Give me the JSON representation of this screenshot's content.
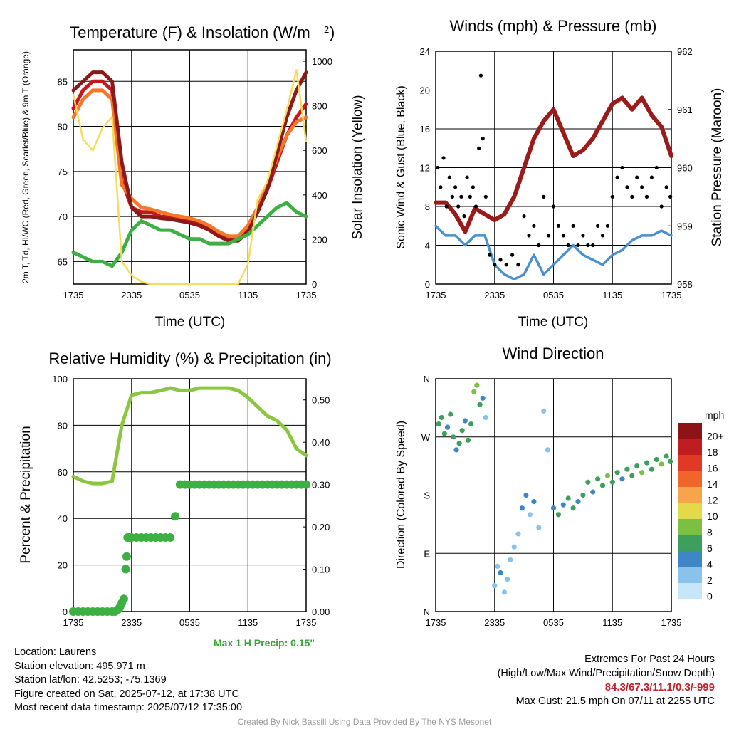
{
  "chart_data": [
    {
      "id": "temp",
      "type": "line",
      "title": "Temperature (F) & Insolation (W/m²)",
      "xlabel": "Time (UTC)",
      "ylabel": "2m T, Td, HI/WC (Red, Green, Scarlet/Blue) & 9m T (Orange)",
      "ylabel_right": "Solar Insolation (Yellow)",
      "x_ticks": [
        "1735",
        "2335",
        "0535",
        "1135",
        "1735"
      ],
      "y_ticks": [
        65,
        70,
        75,
        80,
        85
      ],
      "y_ticks_right": [
        0,
        200,
        400,
        600,
        800,
        1000
      ],
      "ylim": [
        62.5,
        88.5
      ],
      "ylim_right": [
        0,
        1000
      ],
      "x_hours": [
        0,
        1,
        2,
        3,
        4,
        5,
        6,
        7,
        8,
        9,
        10,
        11,
        12,
        13,
        14,
        15,
        16,
        17,
        18,
        19,
        20,
        21,
        22,
        23,
        24
      ],
      "series": [
        {
          "role": "2m T",
          "color": "#c8161d",
          "axis": "left",
          "values": [
            82,
            84,
            85,
            85,
            84,
            74,
            71,
            70.5,
            70.5,
            70,
            70,
            69.8,
            69.5,
            69.3,
            68.8,
            68,
            67.5,
            67.5,
            68.5,
            70.5,
            73,
            76,
            79,
            81,
            82.5
          ]
        },
        {
          "role": "9m T",
          "color": "#f4772a",
          "axis": "left",
          "values": [
            81,
            83,
            84,
            84,
            83,
            73.5,
            72,
            71,
            70.8,
            70.5,
            70.2,
            70,
            69.8,
            69.5,
            69,
            68.3,
            67.8,
            67.8,
            69,
            71,
            73.5,
            76.5,
            79,
            80.5,
            81
          ]
        },
        {
          "role": "HI/WC",
          "color": "#8b1a1a",
          "axis": "left",
          "values": [
            84,
            85,
            86,
            86,
            85,
            76,
            71,
            70,
            70,
            69.8,
            69.7,
            69.5,
            69.3,
            69,
            68.5,
            67.8,
            67.3,
            67.3,
            68.3,
            70.5,
            73,
            77,
            81,
            84,
            86
          ]
        },
        {
          "role": "2m Td",
          "color": "#3cb043",
          "axis": "left",
          "values": [
            66,
            65.5,
            65,
            65,
            64.5,
            66,
            68.5,
            69.5,
            69,
            68.5,
            68.5,
            68,
            67.5,
            67.5,
            67,
            67,
            67,
            67.5,
            68,
            69,
            70,
            71,
            71.5,
            70.5,
            70
          ]
        },
        {
          "role": "Solar",
          "color": "#f7dc5a",
          "axis": "right",
          "values": [
            850,
            650,
            600,
            700,
            750,
            100,
            40,
            10,
            0,
            0,
            0,
            0,
            0,
            0,
            0,
            0,
            0,
            0,
            90,
            380,
            460,
            620,
            780,
            960,
            640
          ]
        }
      ]
    },
    {
      "id": "winds",
      "type": "line",
      "title": "Winds (mph) & Pressure (mb)",
      "xlabel": "Time (UTC)",
      "ylabel": "Sonic Wind & Gust (Blue, Black)",
      "ylabel_right": "Station Pressure (Maroon)",
      "x_ticks": [
        "1735",
        "2335",
        "0535",
        "1135",
        "1735"
      ],
      "y_ticks": [
        0,
        4,
        8,
        12,
        16,
        20,
        24
      ],
      "y_ticks_right": [
        958,
        959,
        960,
        961,
        962
      ],
      "ylim": [
        0,
        24
      ],
      "ylim_right": [
        958,
        962
      ],
      "x_hours": [
        0,
        1,
        2,
        3,
        4,
        5,
        6,
        7,
        8,
        9,
        10,
        11,
        12,
        13,
        14,
        15,
        16,
        17,
        18,
        19,
        20,
        21,
        22,
        23,
        24
      ],
      "series": [
        {
          "role": "Sonic Wind",
          "color": "#4a90d0",
          "axis": "left",
          "values": [
            6,
            5,
            5,
            4,
            5,
            5,
            2,
            1,
            0.5,
            1,
            3,
            1,
            2,
            3,
            4,
            3,
            2.5,
            2,
            3,
            3.5,
            4.5,
            5,
            5,
            5.5,
            5
          ]
        },
        {
          "role": "Pressure",
          "color": "#9b1b1b",
          "axis": "right",
          "values": [
            959.4,
            959.4,
            959.2,
            958.9,
            959.3,
            959.2,
            959.1,
            959.2,
            959.5,
            960.0,
            960.5,
            960.8,
            961.0,
            960.6,
            960.2,
            960.3,
            960.5,
            960.8,
            961.1,
            961.2,
            961.0,
            961.2,
            960.9,
            960.7,
            960.2
          ]
        }
      ],
      "gusts": {
        "color": "#000000",
        "x": [
          0.2,
          0.5,
          0.8,
          1.1,
          1.4,
          1.7,
          2.0,
          2.3,
          2.6,
          2.9,
          3.2,
          3.5,
          3.8,
          4.1,
          4.4,
          4.6,
          4.8,
          5.1,
          5.5,
          6.0,
          6.6,
          7.2,
          7.8,
          8.4,
          9.0,
          9.5,
          10.0,
          10.5,
          11.0,
          11.5,
          12.0,
          12.5,
          13.0,
          13.5,
          14.0,
          14.5,
          15.0,
          15.5,
          16.0,
          16.5,
          17.0,
          17.5,
          18.0,
          18.5,
          19.0,
          19.5,
          20.0,
          20.5,
          21.0,
          21.5,
          22.0,
          22.5,
          23.0,
          23.5,
          23.9
        ],
        "y": [
          12,
          10,
          13,
          8,
          11,
          9,
          10,
          8,
          9,
          7,
          11,
          9,
          10,
          8,
          14,
          21.5,
          15,
          9,
          3,
          2,
          2.5,
          2,
          3,
          2,
          7,
          5,
          6,
          4,
          9,
          5,
          8,
          6,
          5,
          4,
          6,
          4,
          5,
          4,
          4,
          6,
          5,
          6,
          9,
          11,
          12,
          10,
          9,
          11,
          10,
          9,
          11,
          12,
          8,
          10,
          9
        ]
      }
    },
    {
      "id": "rh",
      "type": "line",
      "title": "Relative Humidity (%) & Precipitation (in)",
      "xlabel": "",
      "ylabel": "Percent & Precipitation",
      "x_ticks": [
        "1735",
        "2335",
        "0535",
        "1135",
        "1735"
      ],
      "y_ticks": [
        0,
        20,
        40,
        60,
        80,
        100
      ],
      "y_ticks_right": [
        "0.00",
        "0.10",
        "0.20",
        "0.30",
        "0.40",
        "0.50"
      ],
      "ylim": [
        0,
        100
      ],
      "ylim_right": [
        0,
        0.55
      ],
      "x_hours": [
        0,
        1,
        2,
        3,
        4,
        5,
        6,
        7,
        8,
        9,
        10,
        11,
        12,
        13,
        14,
        15,
        16,
        17,
        18,
        19,
        20,
        21,
        22,
        23,
        24
      ],
      "series": [
        {
          "role": "RH",
          "color": "#8cc63f",
          "axis": "left",
          "values": [
            58,
            56,
            55,
            55,
            56,
            80,
            93,
            94,
            94,
            95,
            96,
            95,
            95,
            96,
            96,
            96,
            96,
            95,
            92,
            88,
            84,
            82,
            78,
            70,
            67
          ]
        }
      ],
      "precip": {
        "color": "#3cb043",
        "x": [
          0,
          0.5,
          1,
          1.5,
          2,
          2.5,
          3,
          3.5,
          4,
          4.3,
          4.6,
          4.8,
          5.0,
          5.2,
          5.4,
          5.5,
          5.6,
          5.8,
          6.0,
          6.5,
          7,
          7.5,
          8,
          8.5,
          9,
          9.5,
          10,
          10.5,
          11,
          11.5,
          12,
          12.5,
          13,
          13.5,
          14,
          14.5,
          15,
          15.5,
          16,
          16.5,
          17,
          17.5,
          18,
          18.5,
          19,
          19.5,
          20,
          20.5,
          21,
          21.5,
          22,
          22.5,
          23,
          23.5,
          24
        ],
        "y": [
          0,
          0,
          0,
          0,
          0,
          0,
          0,
          0,
          0,
          0,
          0.005,
          0.01,
          0.02,
          0.03,
          0.1,
          0.13,
          0.175,
          0.175,
          0.175,
          0.175,
          0.175,
          0.175,
          0.175,
          0.175,
          0.175,
          0.175,
          0.175,
          0.225,
          0.3,
          0.3,
          0.3,
          0.3,
          0.3,
          0.3,
          0.3,
          0.3,
          0.3,
          0.3,
          0.3,
          0.3,
          0.3,
          0.3,
          0.3,
          0.3,
          0.3,
          0.3,
          0.3,
          0.3,
          0.3,
          0.3,
          0.3,
          0.3,
          0.3,
          0.3,
          0.3
        ]
      },
      "annotation": "Max 1 H Precip: 0.15\""
    },
    {
      "id": "wdir",
      "type": "scatter",
      "title": "Wind Direction",
      "ylabel": "Direction (Colored By Speed)",
      "x_ticks": [
        "1735",
        "2335",
        "0535",
        "1135",
        "1735"
      ],
      "y_ticks": [
        "N",
        "E",
        "S",
        "W",
        "N"
      ],
      "ylim": [
        0,
        360
      ],
      "colorbar": {
        "title": "mph",
        "labels": [
          "0",
          "2",
          "4",
          "6",
          "8",
          "10",
          "12",
          "14",
          "16",
          "18",
          "20+"
        ],
        "colors": [
          "#c6e6fa",
          "#89c3ec",
          "#3f86c6",
          "#3e9f5a",
          "#7bc043",
          "#e3da4a",
          "#f7a44a",
          "#f0662a",
          "#e03a26",
          "#c01d22",
          "#8e1316"
        ]
      },
      "points": [
        [
          0.3,
          290,
          6
        ],
        [
          0.6,
          300,
          5
        ],
        [
          0.9,
          275,
          6
        ],
        [
          1.2,
          285,
          4
        ],
        [
          1.5,
          305,
          6
        ],
        [
          1.8,
          270,
          5
        ],
        [
          2.1,
          250,
          4
        ],
        [
          2.4,
          260,
          6
        ],
        [
          2.7,
          280,
          5
        ],
        [
          3.0,
          295,
          3
        ],
        [
          3.3,
          265,
          5
        ],
        [
          3.6,
          290,
          6
        ],
        [
          3.9,
          340,
          7
        ],
        [
          4.2,
          350,
          8
        ],
        [
          4.5,
          320,
          5
        ],
        [
          4.8,
          330,
          3
        ],
        [
          5.1,
          300,
          1
        ],
        [
          6.0,
          40,
          2
        ],
        [
          6.3,
          70,
          1
        ],
        [
          6.6,
          60,
          3
        ],
        [
          7.0,
          30,
          2
        ],
        [
          7.3,
          50,
          1
        ],
        [
          7.6,
          80,
          2
        ],
        [
          8.0,
          100,
          1
        ],
        [
          8.4,
          120,
          2
        ],
        [
          8.8,
          160,
          3
        ],
        [
          9.2,
          180,
          4
        ],
        [
          9.6,
          150,
          2
        ],
        [
          10.0,
          170,
          3
        ],
        [
          10.5,
          130,
          2
        ],
        [
          11.0,
          310,
          1
        ],
        [
          11.4,
          250,
          2
        ],
        [
          12.0,
          160,
          4
        ],
        [
          12.5,
          150,
          5
        ],
        [
          13.0,
          165,
          4
        ],
        [
          13.5,
          175,
          6
        ],
        [
          14.0,
          160,
          5
        ],
        [
          14.5,
          170,
          3
        ],
        [
          15.0,
          180,
          5
        ],
        [
          15.5,
          200,
          6
        ],
        [
          16.0,
          185,
          4
        ],
        [
          16.5,
          205,
          5
        ],
        [
          17.0,
          195,
          6
        ],
        [
          17.5,
          210,
          7
        ],
        [
          18.0,
          200,
          5
        ],
        [
          18.5,
          215,
          6
        ],
        [
          19.0,
          205,
          4
        ],
        [
          19.5,
          220,
          6
        ],
        [
          20.0,
          210,
          5
        ],
        [
          20.5,
          225,
          6
        ],
        [
          21.0,
          215,
          7
        ],
        [
          21.5,
          230,
          6
        ],
        [
          22.0,
          220,
          5
        ],
        [
          22.5,
          235,
          6
        ],
        [
          23.0,
          228,
          7
        ],
        [
          23.5,
          240,
          6
        ],
        [
          23.9,
          232,
          5
        ]
      ]
    }
  ],
  "info": {
    "location": "Location: Laurens",
    "elevation": "Station elevation: 495.971 m",
    "latlon": "Station lat/lon: 42.5253; -75.1369",
    "created": "Figure created on Sat, 2025-07-12, at 17:38 UTC",
    "recent": "Most recent data timestamp: 2025/07/12 17:35:00"
  },
  "extremes": {
    "title": "Extremes For Past 24 Hours",
    "subtitle": "(High/Low/Max Wind/Precipitation/Snow Depth)",
    "values": "84.3/67.3/11.1/0.3/-999",
    "max_gust": "Max Gust: 21.5 mph On 07/11 at 2255 UTC"
  },
  "credit": "Created By Nick Bassill Using Data Provided By The NYS Mesonet"
}
